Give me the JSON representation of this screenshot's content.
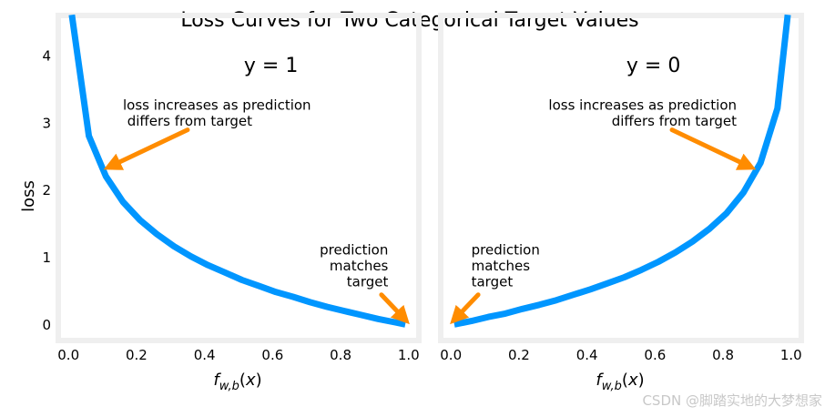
{
  "title": "Loss Curves for Two Categorical Target Values",
  "watermark": "CSDN @脚踏实地的大梦想家",
  "colors": {
    "curve": "#0096ff",
    "arrow": "#ff8c00",
    "frame": "#efefef"
  },
  "chart_data": [
    {
      "type": "line",
      "panel_label": "y = 1",
      "xlabel": "f_w,b(x)",
      "ylabel": "loss",
      "xlim": [
        -0.03,
        1.03
      ],
      "ylim": [
        -0.23,
        4.6
      ],
      "xticks": [
        "0.0",
        "0.2",
        "0.4",
        "0.6",
        "0.8",
        "1.0"
      ],
      "yticks": [
        "0",
        "1",
        "2",
        "3",
        "4"
      ],
      "series": [
        {
          "x": [
            0.01,
            0.06,
            0.11,
            0.16,
            0.21,
            0.26,
            0.31,
            0.36,
            0.41,
            0.46,
            0.51,
            0.56,
            0.61,
            0.66,
            0.71,
            0.76,
            0.81,
            0.86,
            0.91,
            0.96,
            0.99
          ],
          "y": [
            4.61,
            2.81,
            2.21,
            1.83,
            1.56,
            1.35,
            1.17,
            1.02,
            0.89,
            0.78,
            0.67,
            0.58,
            0.49,
            0.42,
            0.34,
            0.27,
            0.21,
            0.15,
            0.09,
            0.04,
            0.01
          ]
        }
      ],
      "annotations": [
        {
          "lines": [
            "loss increases as prediction",
            " differs from target"
          ],
          "align": "start",
          "text_x": 0.16,
          "text_y": 3.2,
          "arrow_from": [
            0.35,
            2.9
          ],
          "arrow_to": [
            0.12,
            2.35
          ]
        },
        {
          "lines": [
            "prediction",
            "matches",
            "target"
          ],
          "align": "end",
          "text_x": 0.94,
          "text_y": 1.05,
          "arrow_from": [
            0.92,
            0.45
          ],
          "arrow_to": [
            0.99,
            0.08
          ]
        }
      ]
    },
    {
      "type": "line",
      "panel_label": "y = 0",
      "xlabel": "f_w,b(x)",
      "ylabel": "",
      "xlim": [
        -0.03,
        1.03
      ],
      "ylim": [
        -0.23,
        4.6
      ],
      "xticks": [
        "0.0",
        "0.2",
        "0.4",
        "0.6",
        "0.8",
        "1.0"
      ],
      "yticks": [],
      "series": [
        {
          "x": [
            0.01,
            0.06,
            0.11,
            0.16,
            0.21,
            0.26,
            0.31,
            0.36,
            0.41,
            0.46,
            0.51,
            0.56,
            0.61,
            0.66,
            0.71,
            0.76,
            0.81,
            0.86,
            0.91,
            0.96,
            0.99
          ],
          "y": [
            0.01,
            0.06,
            0.12,
            0.17,
            0.24,
            0.3,
            0.37,
            0.45,
            0.53,
            0.62,
            0.71,
            0.82,
            0.94,
            1.08,
            1.24,
            1.43,
            1.66,
            1.97,
            2.41,
            3.22,
            4.61
          ]
        }
      ],
      "annotations": [
        {
          "lines": [
            "loss increases as prediction",
            "differs from target"
          ],
          "align": "end",
          "text_x": 0.84,
          "text_y": 3.2,
          "arrow_from": [
            0.65,
            2.9
          ],
          "arrow_to": [
            0.88,
            2.35
          ]
        },
        {
          "lines": [
            "prediction",
            "matches",
            "target"
          ],
          "align": "start",
          "text_x": 0.06,
          "text_y": 1.05,
          "arrow_from": [
            0.08,
            0.45
          ],
          "arrow_to": [
            0.01,
            0.08
          ]
        }
      ]
    }
  ]
}
